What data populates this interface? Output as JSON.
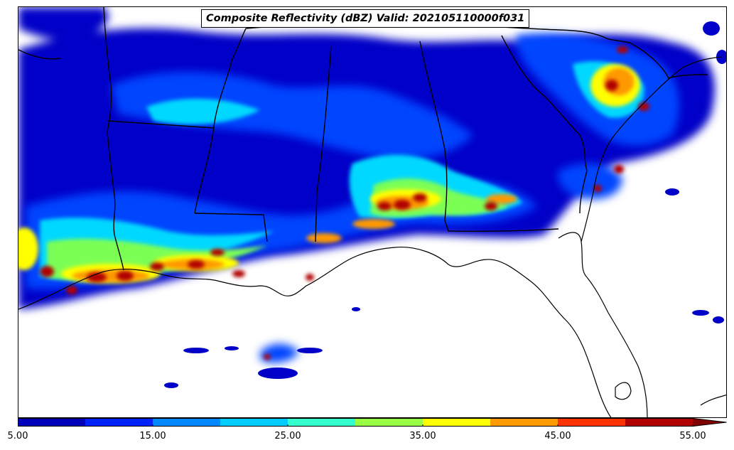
{
  "title": "Composite Reflectivity (dBZ) Valid: 202105110000f031",
  "colorbar": {
    "bins": [
      5,
      10,
      15,
      20,
      25,
      30,
      35,
      40,
      45,
      50,
      55
    ],
    "colors": [
      "#0000b8",
      "#0022ff",
      "#0088ff",
      "#00ccff",
      "#33ffcc",
      "#99ff44",
      "#ffff00",
      "#ff9900",
      "#ff3300",
      "#b00000"
    ],
    "extend_color": "#800000",
    "tick_labels": [
      "5.00",
      "15.00",
      "25.00",
      "35.00",
      "45.00",
      "55.00"
    ]
  },
  "map": {
    "region": "southeastern United States",
    "features": [
      "state-borders",
      "coastline"
    ]
  }
}
